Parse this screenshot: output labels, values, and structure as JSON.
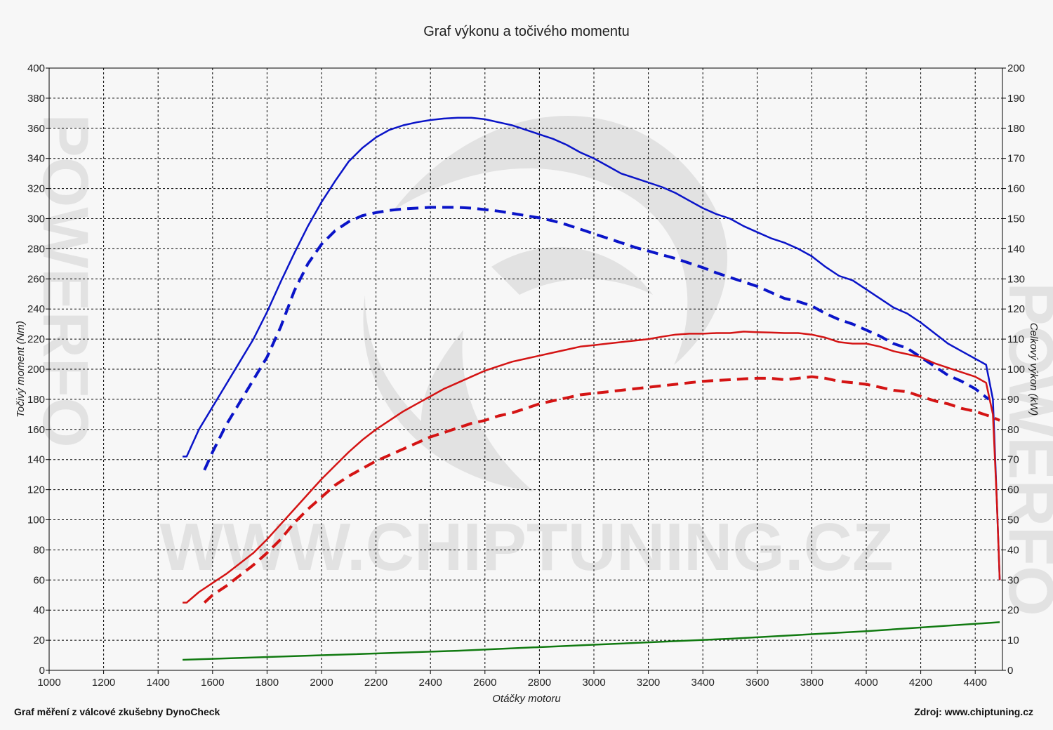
{
  "watermark": {
    "center_text": "WWW.CHIPTUNING.CZ",
    "side_text": "POWERFO",
    "color": "#e2e2e2"
  },
  "footer": {
    "left": "Graf měření z válcové zkušebny DynoCheck",
    "right": "Zdroj: www.chiptuning.cz"
  },
  "chart_data": {
    "type": "line",
    "title": "Graf výkonu a točivého momentu",
    "xlabel": "Otáčky motoru",
    "ylabel_left": "Točivý moment (Nm)",
    "ylabel_right": "Celkový výkon (kW)",
    "xlim": [
      1000,
      4500
    ],
    "ylim_left": [
      0,
      400
    ],
    "ylim_right": [
      0,
      200
    ],
    "x_ticks": [
      1000,
      1200,
      1400,
      1600,
      1800,
      2000,
      2200,
      2400,
      2600,
      2800,
      3000,
      3200,
      3400,
      3600,
      3800,
      4000,
      4200,
      4400
    ],
    "y_ticks_left": [
      0,
      20,
      40,
      60,
      80,
      100,
      120,
      140,
      160,
      180,
      200,
      220,
      240,
      260,
      280,
      300,
      320,
      340,
      360,
      380,
      400
    ],
    "y_ticks_right": [
      0,
      10,
      20,
      30,
      40,
      50,
      60,
      70,
      80,
      90,
      100,
      110,
      120,
      130,
      140,
      150,
      160,
      170,
      180,
      190,
      200
    ],
    "grid": true,
    "series": [
      {
        "color": "#0a14c8",
        "style": "solid",
        "axis": "left",
        "points": [
          [
            1490,
            142
          ],
          [
            1505,
            142
          ],
          [
            1550,
            160
          ],
          [
            1600,
            175
          ],
          [
            1650,
            190
          ],
          [
            1700,
            205
          ],
          [
            1750,
            220
          ],
          [
            1800,
            238
          ],
          [
            1850,
            258
          ],
          [
            1900,
            277
          ],
          [
            1950,
            295
          ],
          [
            2000,
            311
          ],
          [
            2050,
            325
          ],
          [
            2100,
            338
          ],
          [
            2150,
            347
          ],
          [
            2200,
            354
          ],
          [
            2250,
            359
          ],
          [
            2300,
            362
          ],
          [
            2350,
            364
          ],
          [
            2400,
            365.5
          ],
          [
            2450,
            366.5
          ],
          [
            2500,
            367
          ],
          [
            2550,
            367
          ],
          [
            2600,
            366
          ],
          [
            2650,
            364
          ],
          [
            2700,
            362
          ],
          [
            2750,
            359
          ],
          [
            2800,
            356
          ],
          [
            2850,
            353
          ],
          [
            2900,
            349
          ],
          [
            2950,
            344
          ],
          [
            3000,
            340
          ],
          [
            3050,
            335
          ],
          [
            3100,
            330
          ],
          [
            3150,
            327
          ],
          [
            3200,
            324
          ],
          [
            3250,
            321
          ],
          [
            3300,
            317
          ],
          [
            3350,
            312
          ],
          [
            3400,
            307
          ],
          [
            3450,
            303
          ],
          [
            3500,
            300
          ],
          [
            3550,
            295
          ],
          [
            3600,
            291
          ],
          [
            3650,
            287
          ],
          [
            3700,
            284
          ],
          [
            3750,
            280
          ],
          [
            3800,
            275
          ],
          [
            3850,
            268
          ],
          [
            3900,
            262
          ],
          [
            3950,
            259
          ],
          [
            4000,
            253
          ],
          [
            4050,
            247
          ],
          [
            4100,
            241
          ],
          [
            4150,
            237
          ],
          [
            4200,
            231
          ],
          [
            4250,
            224
          ],
          [
            4300,
            217
          ],
          [
            4350,
            212
          ],
          [
            4400,
            207
          ],
          [
            4440,
            203
          ],
          [
            4465,
            180
          ],
          [
            4480,
            110
          ],
          [
            4490,
            60
          ]
        ]
      },
      {
        "color": "#0a14c8",
        "style": "dashed",
        "axis": "left",
        "points": [
          [
            1570,
            133
          ],
          [
            1600,
            145
          ],
          [
            1650,
            163
          ],
          [
            1700,
            178
          ],
          [
            1750,
            193
          ],
          [
            1800,
            208
          ],
          [
            1850,
            228
          ],
          [
            1900,
            252
          ],
          [
            1950,
            270
          ],
          [
            2000,
            283
          ],
          [
            2050,
            292
          ],
          [
            2100,
            298
          ],
          [
            2150,
            302
          ],
          [
            2200,
            304
          ],
          [
            2250,
            305.5
          ],
          [
            2300,
            306.5
          ],
          [
            2350,
            307
          ],
          [
            2400,
            307.5
          ],
          [
            2450,
            307.5
          ],
          [
            2500,
            307.5
          ],
          [
            2550,
            307
          ],
          [
            2600,
            306
          ],
          [
            2650,
            305
          ],
          [
            2700,
            303.5
          ],
          [
            2750,
            302
          ],
          [
            2800,
            300.5
          ],
          [
            2850,
            298.5
          ],
          [
            2900,
            296
          ],
          [
            2950,
            293
          ],
          [
            3000,
            290
          ],
          [
            3050,
            287
          ],
          [
            3100,
            284
          ],
          [
            3150,
            281
          ],
          [
            3200,
            278.5
          ],
          [
            3250,
            276
          ],
          [
            3300,
            273.5
          ],
          [
            3350,
            270.5
          ],
          [
            3400,
            267.5
          ],
          [
            3450,
            264
          ],
          [
            3500,
            261
          ],
          [
            3550,
            258
          ],
          [
            3600,
            255
          ],
          [
            3650,
            251
          ],
          [
            3700,
            247
          ],
          [
            3750,
            245
          ],
          [
            3800,
            242
          ],
          [
            3850,
            237
          ],
          [
            3900,
            233
          ],
          [
            3950,
            230
          ],
          [
            4000,
            226
          ],
          [
            4050,
            222
          ],
          [
            4100,
            217
          ],
          [
            4150,
            214
          ],
          [
            4200,
            208
          ],
          [
            4250,
            202
          ],
          [
            4300,
            196
          ],
          [
            4350,
            192
          ],
          [
            4400,
            187
          ],
          [
            4450,
            180
          ]
        ]
      },
      {
        "color": "#d41414",
        "style": "solid",
        "axis": "right",
        "points": [
          [
            1490,
            22.5
          ],
          [
            1505,
            22.5
          ],
          [
            1550,
            26
          ],
          [
            1600,
            29
          ],
          [
            1650,
            32
          ],
          [
            1700,
            35.5
          ],
          [
            1750,
            39
          ],
          [
            1800,
            43.5
          ],
          [
            1850,
            48.5
          ],
          [
            1900,
            53.5
          ],
          [
            1950,
            58.5
          ],
          [
            2000,
            63.5
          ],
          [
            2050,
            68
          ],
          [
            2100,
            72.5
          ],
          [
            2150,
            76.5
          ],
          [
            2200,
            80
          ],
          [
            2250,
            83
          ],
          [
            2300,
            86
          ],
          [
            2350,
            88.5
          ],
          [
            2400,
            91
          ],
          [
            2450,
            93.5
          ],
          [
            2500,
            95.5
          ],
          [
            2550,
            97.5
          ],
          [
            2600,
            99.5
          ],
          [
            2650,
            101
          ],
          [
            2700,
            102.5
          ],
          [
            2750,
            103.5
          ],
          [
            2800,
            104.5
          ],
          [
            2850,
            105.5
          ],
          [
            2900,
            106.5
          ],
          [
            2950,
            107.5
          ],
          [
            3000,
            108
          ],
          [
            3050,
            108.5
          ],
          [
            3100,
            109
          ],
          [
            3150,
            109.5
          ],
          [
            3200,
            110
          ],
          [
            3250,
            110.8
          ],
          [
            3300,
            111.5
          ],
          [
            3350,
            111.8
          ],
          [
            3400,
            111.8
          ],
          [
            3450,
            112
          ],
          [
            3500,
            112
          ],
          [
            3550,
            112.5
          ],
          [
            3600,
            112.3
          ],
          [
            3650,
            112.2
          ],
          [
            3700,
            112
          ],
          [
            3750,
            112
          ],
          [
            3800,
            111.5
          ],
          [
            3850,
            110.5
          ],
          [
            3900,
            109
          ],
          [
            3950,
            108.5
          ],
          [
            4000,
            108.5
          ],
          [
            4050,
            107.5
          ],
          [
            4100,
            106
          ],
          [
            4150,
            105
          ],
          [
            4200,
            104
          ],
          [
            4250,
            102
          ],
          [
            4300,
            100.5
          ],
          [
            4350,
            99
          ],
          [
            4400,
            97.5
          ],
          [
            4440,
            95.5
          ],
          [
            4465,
            85
          ],
          [
            4480,
            55
          ],
          [
            4490,
            30
          ]
        ]
      },
      {
        "color": "#d41414",
        "style": "dashed",
        "axis": "right",
        "points": [
          [
            1570,
            22.5
          ],
          [
            1600,
            25
          ],
          [
            1650,
            28
          ],
          [
            1700,
            31.5
          ],
          [
            1750,
            35
          ],
          [
            1800,
            39
          ],
          [
            1850,
            43.5
          ],
          [
            1900,
            49
          ],
          [
            1950,
            53.5
          ],
          [
            2000,
            57.5
          ],
          [
            2050,
            61.5
          ],
          [
            2100,
            64.5
          ],
          [
            2150,
            67
          ],
          [
            2200,
            69.5
          ],
          [
            2250,
            71.5
          ],
          [
            2300,
            73.5
          ],
          [
            2350,
            75.5
          ],
          [
            2400,
            77.5
          ],
          [
            2450,
            79
          ],
          [
            2500,
            80.5
          ],
          [
            2550,
            82
          ],
          [
            2600,
            83
          ],
          [
            2650,
            84.5
          ],
          [
            2700,
            85.5
          ],
          [
            2750,
            87
          ],
          [
            2800,
            88.5
          ],
          [
            2850,
            89.5
          ],
          [
            2900,
            90.5
          ],
          [
            2950,
            91.5
          ],
          [
            3000,
            92
          ],
          [
            3050,
            92.5
          ],
          [
            3100,
            93
          ],
          [
            3150,
            93.5
          ],
          [
            3200,
            94
          ],
          [
            3250,
            94.5
          ],
          [
            3300,
            95
          ],
          [
            3350,
            95.5
          ],
          [
            3400,
            96
          ],
          [
            3450,
            96.3
          ],
          [
            3500,
            96.5
          ],
          [
            3550,
            96.8
          ],
          [
            3600,
            97
          ],
          [
            3650,
            97
          ],
          [
            3700,
            96.5
          ],
          [
            3750,
            97
          ],
          [
            3800,
            97.5
          ],
          [
            3850,
            97
          ],
          [
            3900,
            96
          ],
          [
            3950,
            95.5
          ],
          [
            4000,
            95
          ],
          [
            4050,
            94
          ],
          [
            4100,
            93
          ],
          [
            4150,
            92.5
          ],
          [
            4200,
            91
          ],
          [
            4250,
            89.5
          ],
          [
            4300,
            88.5
          ],
          [
            4350,
            87
          ],
          [
            4400,
            86
          ],
          [
            4450,
            84.5
          ],
          [
            4490,
            83
          ]
        ]
      },
      {
        "color": "#117a11",
        "style": "solid",
        "axis": "right",
        "points": [
          [
            1490,
            3.5
          ],
          [
            2000,
            5
          ],
          [
            2500,
            6.5
          ],
          [
            3000,
            8.5
          ],
          [
            3500,
            10.5
          ],
          [
            4000,
            13
          ],
          [
            4490,
            16
          ]
        ]
      }
    ]
  }
}
